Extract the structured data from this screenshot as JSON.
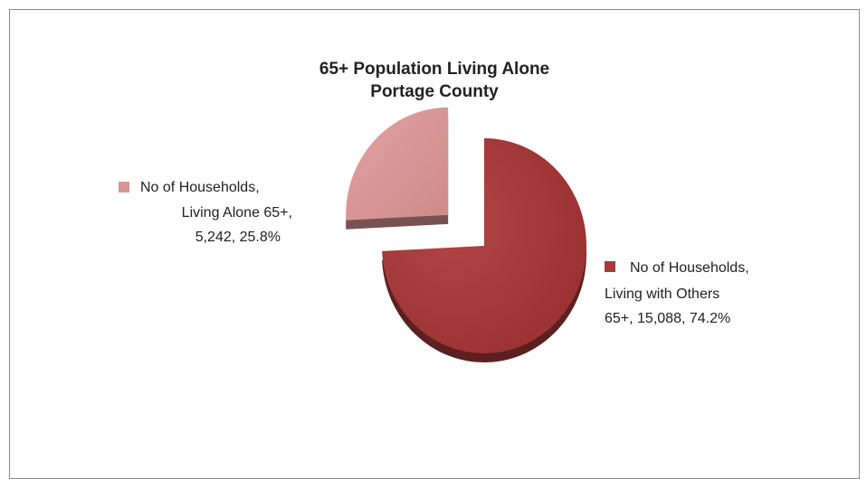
{
  "chart_data": {
    "type": "pie",
    "title_lines": [
      "65+ Population Living Alone",
      "Portage County"
    ],
    "slices": [
      {
        "label_lines": [
          "No of Households,",
          "Living Alone 65+,",
          "5,242, 25.8%"
        ],
        "value": 5242,
        "percent": 25.8,
        "color": "#d99594",
        "exploded": true
      },
      {
        "label_lines": [
          "No of Households,",
          "Living with Others",
          "65+, 15,088, 74.2%"
        ],
        "value": 15088,
        "percent": 74.2,
        "color": "#a83a3a",
        "exploded": false
      }
    ]
  }
}
